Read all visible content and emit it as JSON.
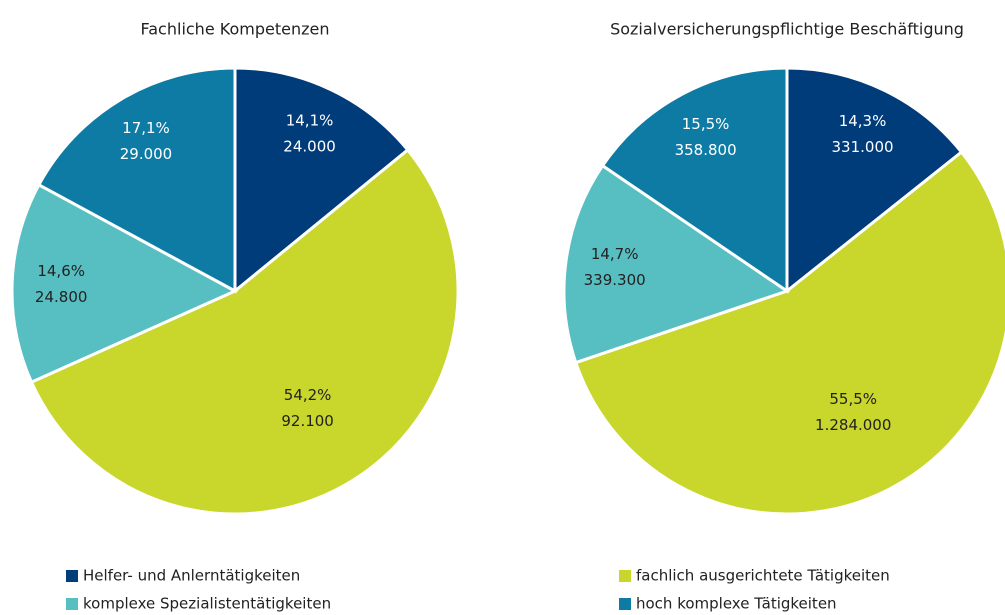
{
  "legend": [
    {
      "name": "Helfer- und Anlerntätigkeiten",
      "color": "#003b7a"
    },
    {
      "name": "fachlich ausgerichtete Tätigkeiten",
      "color": "#c9d62c"
    },
    {
      "name": "komplexe Spezialistentätigkeiten",
      "color": "#57bfc1"
    },
    {
      "name": "hoch komplexe Tätigkeiten",
      "color": "#0e7ba5"
    }
  ],
  "chart_data": [
    {
      "type": "pie",
      "title": "Fachliche Kompetenzen",
      "values": [
        14.1,
        54.2,
        14.6,
        17.1
      ],
      "value_labels": [
        "14,1%",
        "54,2%",
        "14,6%",
        "17,1%"
      ],
      "counts": [
        24000,
        92100,
        24800,
        29000
      ],
      "count_labels": [
        "24.000",
        "92.100",
        "24.800",
        "29.000"
      ]
    },
    {
      "type": "pie",
      "title": "Sozialversicherungspflichtige Beschäftigung",
      "values": [
        14.3,
        55.5,
        14.7,
        15.5
      ],
      "value_labels": [
        "14,3%",
        "55,5%",
        "14,7%",
        "15,5%"
      ],
      "counts": [
        331000,
        1284000,
        339300,
        358800
      ],
      "count_labels": [
        "331.000",
        "1.284.000",
        "339.300",
        "358.800"
      ]
    }
  ]
}
